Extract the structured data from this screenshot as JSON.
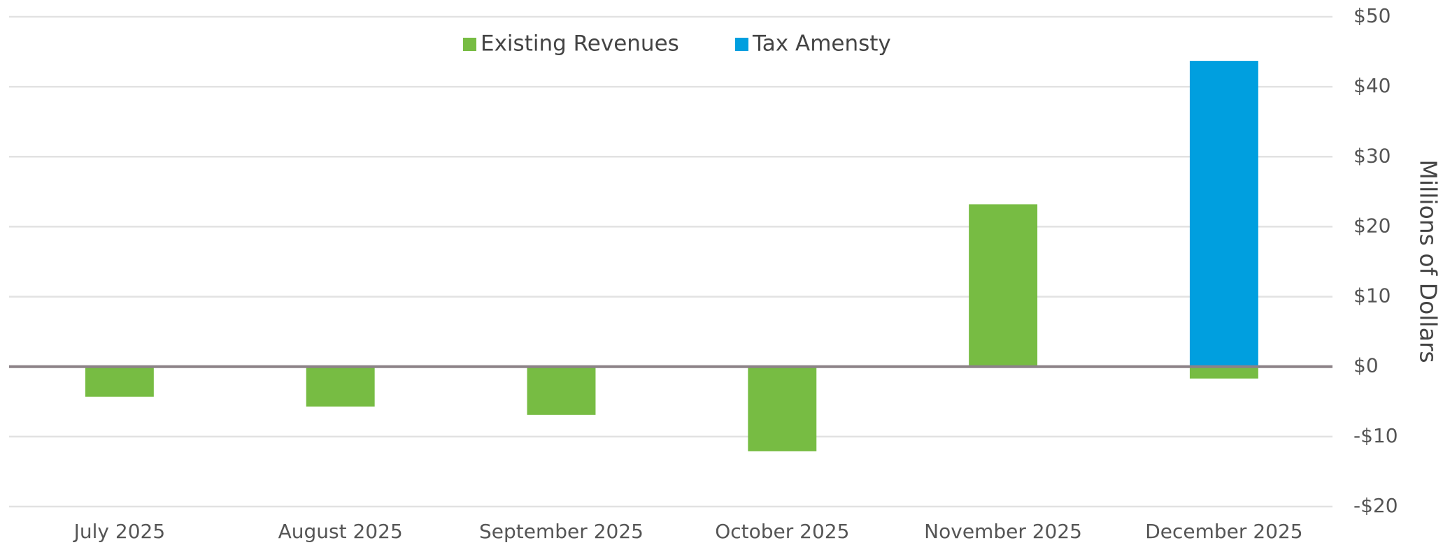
{
  "chart_data": {
    "type": "bar",
    "stacked": true,
    "y_axis_label": "Millions of Dollars",
    "y_axis_side": "right",
    "legend": "top",
    "grid": true,
    "categories": [
      "July 2025",
      "August 2025",
      "September 2025",
      "October 2025",
      "November 2025",
      "December 2025"
    ],
    "series": [
      {
        "name": "Existing Revenues",
        "color": "#77bc43",
        "values": [
          -4.3,
          -5.7,
          -6.9,
          -12.1,
          23.2,
          -1.7
        ]
      },
      {
        "name": "Tax Amensty",
        "color": "#009fdf",
        "values": [
          null,
          null,
          null,
          null,
          null,
          43.7
        ]
      }
    ],
    "ylim": [
      -20,
      50
    ],
    "yticks": [
      {
        "value": -20,
        "label": "-$20"
      },
      {
        "value": -10,
        "label": "-$10"
      },
      {
        "value": 0,
        "label": "$0"
      },
      {
        "value": 10,
        "label": "$10"
      },
      {
        "value": 20,
        "label": "$20"
      },
      {
        "value": 30,
        "label": "$30"
      },
      {
        "value": 40,
        "label": "$40"
      },
      {
        "value": 50,
        "label": "$50"
      }
    ]
  }
}
